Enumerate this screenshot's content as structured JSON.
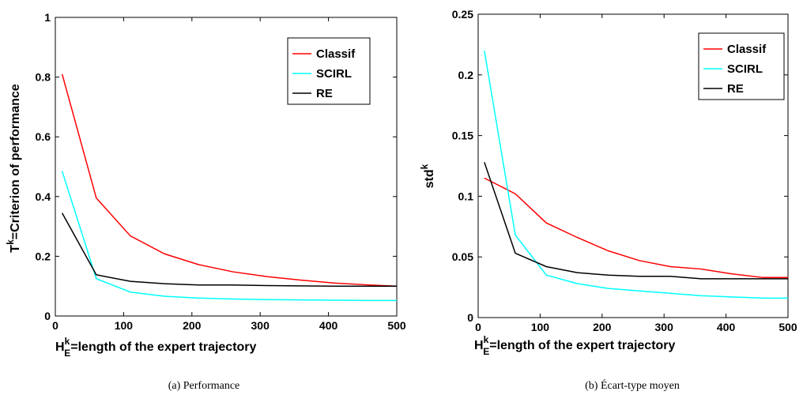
{
  "chart_data": [
    {
      "type": "line",
      "caption": "(a)  Performance",
      "ylabel": {
        "base": "T",
        "sup": "k",
        "rest": "=Criterion of performance"
      },
      "xlabel": {
        "base": "H",
        "sup": "k",
        "sub": "E",
        "rest": "=length of the expert trajectory"
      },
      "xlim": [
        0,
        500
      ],
      "ylim": [
        0,
        1
      ],
      "xticks": [
        0,
        100,
        200,
        300,
        400,
        500
      ],
      "yticks": [
        0,
        0.2,
        0.4,
        0.6,
        0.8,
        1
      ],
      "ytick_labels": [
        "0",
        "0.2",
        "0.4",
        "0.6",
        "0.8",
        "1"
      ],
      "legend_position": "top-right",
      "x": [
        10,
        60,
        110,
        160,
        210,
        260,
        310,
        360,
        410,
        460,
        500
      ],
      "series": [
        {
          "name": "Classif",
          "color": "#ff0000",
          "values": [
            0.81,
            0.395,
            0.268,
            0.208,
            0.172,
            0.148,
            0.132,
            0.12,
            0.11,
            0.104,
            0.1
          ]
        },
        {
          "name": "SCIRL",
          "color": "#00ffff",
          "values": [
            0.485,
            0.125,
            0.08,
            0.066,
            0.06,
            0.057,
            0.055,
            0.054,
            0.053,
            0.052,
            0.052
          ]
        },
        {
          "name": "RE",
          "color": "#000000",
          "values": [
            0.345,
            0.138,
            0.116,
            0.108,
            0.104,
            0.104,
            0.102,
            0.101,
            0.1,
            0.1,
            0.1
          ]
        }
      ]
    },
    {
      "type": "line",
      "caption": "(b)  Écart-type moyen",
      "ylabel": {
        "base": "std",
        "sup": "k",
        "rest": ""
      },
      "xlabel": {
        "base": "H",
        "sup": "k",
        "sub": "E",
        "rest": "=length of the expert trajectory"
      },
      "xlim": [
        0,
        500
      ],
      "ylim": [
        0,
        0.25
      ],
      "xticks": [
        0,
        100,
        200,
        300,
        400,
        500
      ],
      "yticks": [
        0,
        0.05,
        0.1,
        0.15,
        0.2,
        0.25
      ],
      "ytick_labels": [
        "0",
        "0.05",
        "0.1",
        "0.15",
        "0.2",
        "0.25"
      ],
      "legend_position": "top-right",
      "x": [
        10,
        60,
        110,
        160,
        210,
        260,
        310,
        360,
        410,
        460,
        500
      ],
      "series": [
        {
          "name": "Classif",
          "color": "#ff0000",
          "values": [
            0.115,
            0.102,
            0.078,
            0.066,
            0.055,
            0.047,
            0.042,
            0.04,
            0.036,
            0.033,
            0.033
          ]
        },
        {
          "name": "SCIRL",
          "color": "#00ffff",
          "values": [
            0.22,
            0.068,
            0.035,
            0.028,
            0.024,
            0.022,
            0.02,
            0.018,
            0.017,
            0.016,
            0.016
          ]
        },
        {
          "name": "RE",
          "color": "#000000",
          "values": [
            0.128,
            0.053,
            0.042,
            0.037,
            0.035,
            0.034,
            0.034,
            0.032,
            0.032,
            0.032,
            0.032
          ]
        }
      ]
    }
  ]
}
